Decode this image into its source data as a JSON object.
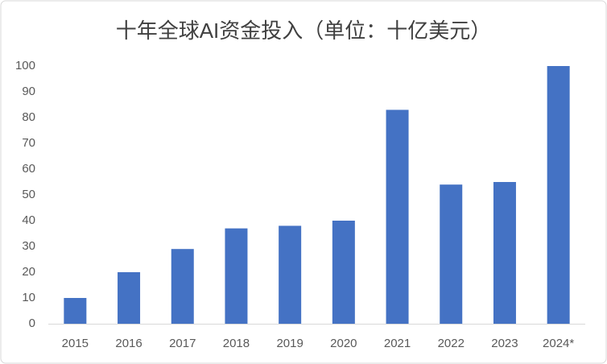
{
  "chart_data": {
    "type": "bar",
    "title": "十年全球AI资金投入（单位：十亿美元）",
    "categories": [
      "2015",
      "2016",
      "2017",
      "2018",
      "2019",
      "2020",
      "2021",
      "2022",
      "2023",
      "2024*"
    ],
    "values": [
      10,
      20,
      29,
      37,
      38,
      40,
      83,
      54,
      55,
      100
    ],
    "color": "#4472c4",
    "ylim": [
      0,
      100
    ],
    "yticks": [
      0,
      10,
      20,
      30,
      40,
      50,
      60,
      70,
      80,
      90,
      100
    ],
    "grid": false
  }
}
